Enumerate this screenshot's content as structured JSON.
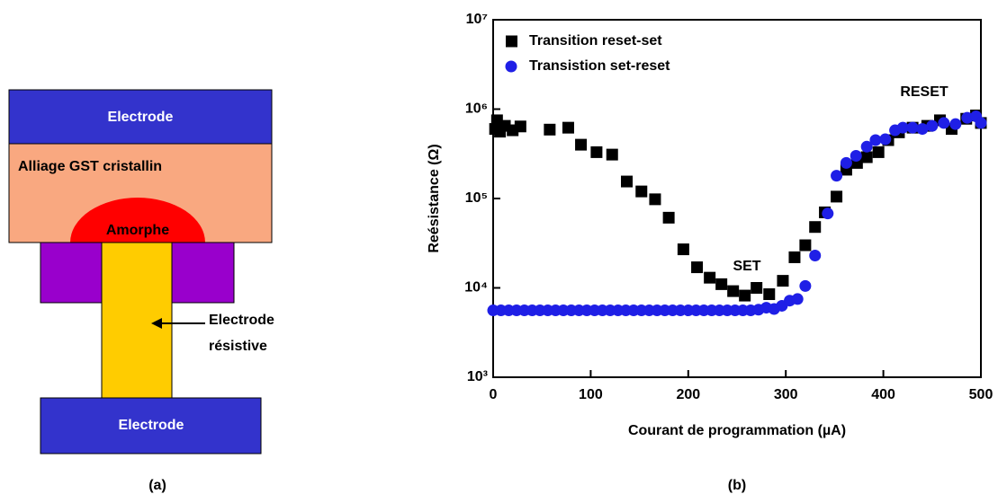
{
  "diagram": {
    "top_electrode": "Electrode",
    "gst": "Alliage GST cristallin",
    "amorphous": "Amorphe",
    "resistive_electrode": [
      "Electrode",
      "résistive"
    ],
    "bottom_electrode": "Electrode",
    "caption": "(a)"
  },
  "chart_data": {
    "type": "scatter",
    "caption": "(b)",
    "x_label": "Courant de programmation (µA)",
    "y_label": "Reésistance (Ω)",
    "xlim": [
      0,
      500
    ],
    "ylim": [
      1000,
      10000000
    ],
    "y_scale": "log",
    "xticks": [
      0,
      100,
      200,
      300,
      400,
      500
    ],
    "yticks": [
      {
        "value": 1000,
        "label": "10³"
      },
      {
        "value": 10000,
        "label": "10⁴"
      },
      {
        "value": 100000,
        "label": "10⁵"
      },
      {
        "value": 1000000,
        "label": "10⁶"
      },
      {
        "value": 10000000,
        "label": "10⁷"
      }
    ],
    "annotations": [
      "SET",
      "RESET"
    ],
    "series": [
      {
        "name": "Transition reset-set",
        "color": "#000000",
        "marker": "square",
        "x": [
          2,
          4,
          7,
          12,
          20,
          28,
          58,
          77,
          90,
          106,
          122,
          137,
          152,
          166,
          180,
          195,
          209,
          222,
          234,
          246,
          258,
          270,
          283,
          297,
          309,
          320,
          330,
          340,
          352,
          362,
          373,
          383,
          395,
          405,
          416,
          430,
          445,
          458,
          470,
          485,
          495,
          500
        ],
        "values": [
          600000,
          750000,
          560000,
          650000,
          580000,
          640000,
          590000,
          620000,
          400000,
          330000,
          310000,
          155000,
          120000,
          98000,
          61000,
          27000,
          17000,
          13000,
          11000,
          9200,
          8200,
          10000,
          8500,
          12000,
          22000,
          30000,
          48000,
          70000,
          105000,
          210000,
          250000,
          290000,
          330000,
          450000,
          550000,
          620000,
          650000,
          750000,
          600000,
          780000,
          850000,
          700000
        ]
      },
      {
        "name": "Transistion set-reset",
        "color": "#1f1fe6",
        "marker": "circle",
        "x": [
          0,
          8,
          16,
          24,
          32,
          40,
          48,
          56,
          64,
          72,
          80,
          88,
          96,
          104,
          112,
          120,
          128,
          136,
          144,
          152,
          160,
          168,
          176,
          184,
          192,
          200,
          208,
          216,
          224,
          232,
          240,
          248,
          256,
          264,
          272,
          280,
          288,
          296,
          304,
          312,
          320,
          330,
          343,
          352,
          362,
          372,
          383,
          392,
          402,
          412,
          420,
          430,
          440,
          450,
          462,
          474,
          486,
          495,
          500
        ],
        "values": [
          5600,
          5600,
          5600,
          5600,
          5600,
          5600,
          5600,
          5600,
          5600,
          5600,
          5600,
          5600,
          5600,
          5600,
          5600,
          5600,
          5600,
          5600,
          5600,
          5600,
          5600,
          5600,
          5600,
          5600,
          5600,
          5600,
          5600,
          5600,
          5600,
          5600,
          5600,
          5600,
          5600,
          5600,
          5700,
          6000,
          5800,
          6300,
          7200,
          7500,
          10500,
          23000,
          68000,
          180000,
          250000,
          300000,
          380000,
          450000,
          460000,
          580000,
          620000,
          620000,
          600000,
          650000,
          700000,
          680000,
          800000,
          830000,
          700000
        ]
      }
    ]
  }
}
